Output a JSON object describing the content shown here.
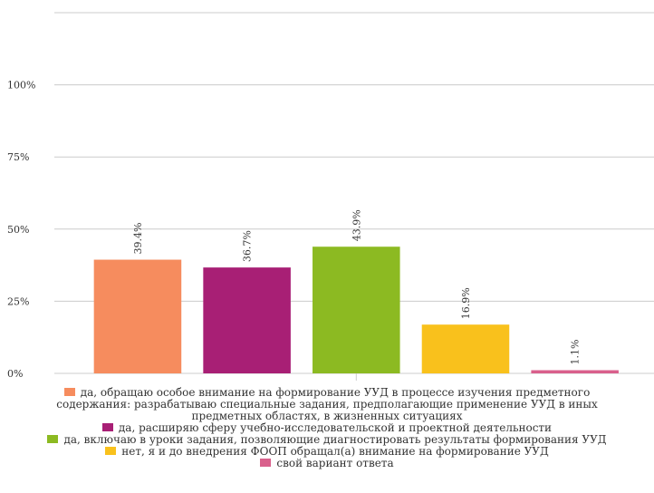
{
  "chart_data": {
    "type": "bar",
    "categories": [
      "да, обращаю особое внимание на формирование УУД в процессе изучения предметного содержания: разрабатываю специальные задания, предполагающие применение УУД в иных предметных областях, в жизненных ситуациях",
      "да, расширяю сферу учебно-исследовательской и проектной деятельности",
      "да, включаю в уроки задания, позволяющие диагностировать результаты формирования УУД",
      "нет, я и до внедрения ФООП обращал(а) внимание на формирование УУД",
      "свой вариант ответа"
    ],
    "values": [
      39.4,
      36.7,
      43.9,
      16.9,
      1.1
    ],
    "value_labels": [
      "39.4%",
      "36.7%",
      "43.9%",
      "16.9%",
      "1.1%"
    ],
    "colors": [
      "#f68c5e",
      "#a81f75",
      "#8cba22",
      "#f9c11c",
      "#d9608c"
    ],
    "ylim": [
      0,
      125
    ],
    "yticks": [
      {
        "value": 0,
        "label": "0%"
      },
      {
        "value": 25,
        "label": "25%"
      },
      {
        "value": 50,
        "label": "50%"
      },
      {
        "value": 75,
        "label": "75%"
      },
      {
        "value": 100,
        "label": "100%"
      }
    ],
    "grid": true
  }
}
